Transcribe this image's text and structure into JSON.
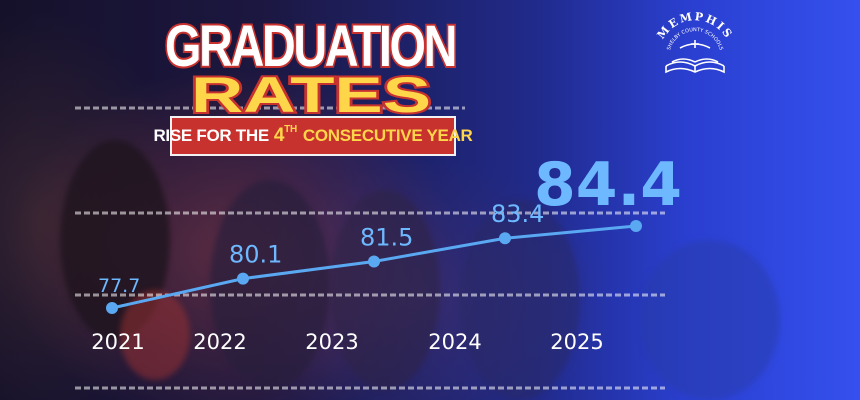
{
  "title": {
    "line1": "GRADUATION",
    "line2": "RATES",
    "subtitle_pre": "RISE FOR THE",
    "subtitle_num": "4",
    "subtitle_sup": "TH",
    "subtitle_post": "CONSECUTIVE YEAR"
  },
  "logo": {
    "text": "MEMPHIS",
    "subtext": "SHELBY COUNTY SCHOOLS"
  },
  "colors": {
    "title_white": "#ffffff",
    "title_outline": "#c8322e",
    "rates_yellow": "#ffd54a",
    "banner_red": "#c8322e",
    "series_blue": "#5aa8f2",
    "label_blue": "#6db8ff"
  },
  "chart_data": {
    "type": "line",
    "x": [
      "2021",
      "2022",
      "2023",
      "2024",
      "2025"
    ],
    "series": [
      {
        "values": [
          77.7,
          80.1,
          81.5,
          83.4,
          84.4
        ]
      }
    ],
    "value_labels": [
      "77.7",
      "80.1",
      "81.5",
      "83.4",
      "84.4"
    ],
    "highlight_index": 4,
    "grid": false,
    "legend": "none"
  }
}
